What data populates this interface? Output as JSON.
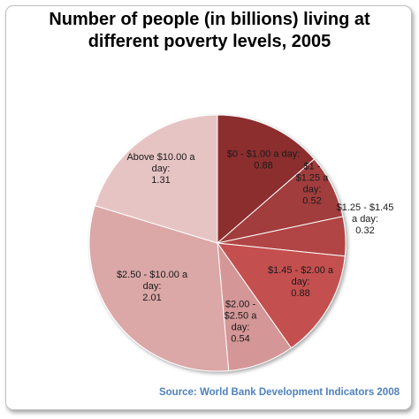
{
  "chart_data": {
    "type": "pie",
    "title": "Number of people (in billions) living at different poverty levels, 2005",
    "title_lines": [
      "Number of people (in billions) living at",
      "different poverty levels, 2005"
    ],
    "slices": [
      {
        "label_lines": [
          "$0 - $1.00 a day:",
          "0.88"
        ],
        "label": "$0 - $1.00 a day:",
        "value": 0.88,
        "color": "#8c2d2f"
      },
      {
        "label_lines": [
          "$1 -",
          "$1.25 a",
          "day:",
          "0.52"
        ],
        "label": "$1 - $1.25 a day:",
        "value": 0.52,
        "color": "#a13c3c"
      },
      {
        "label_lines": [
          "$1.25 - $1.45",
          "a day:",
          "0.32"
        ],
        "label": "$1.25 - $1.45 a day:",
        "value": 0.32,
        "color": "#b14444"
      },
      {
        "label_lines": [
          "$1.45 - $2.00 a",
          "day:",
          "0.88"
        ],
        "label": "$1.45 - $2.00 a day:",
        "value": 0.88,
        "color": "#c45050"
      },
      {
        "label_lines": [
          "$2.00 -",
          "$2.50 a",
          "day:",
          "0.54"
        ],
        "label": "$2.00 - $2.50 a day:",
        "value": 0.54,
        "color": "#d49696"
      },
      {
        "label_lines": [
          "$2.50 - $10.00 a",
          "day:",
          "2.01"
        ],
        "label": "$2.50 - $10.00 a day:",
        "value": 2.01,
        "color": "#dba7a7"
      },
      {
        "label_lines": [
          "Above $10.00 a",
          "day:",
          "1.31"
        ],
        "label": "Above $10.00 a day:",
        "value": 1.31,
        "color": "#e7c4c4"
      }
    ],
    "source": "Source: World Bank Development Indicators 2008"
  }
}
